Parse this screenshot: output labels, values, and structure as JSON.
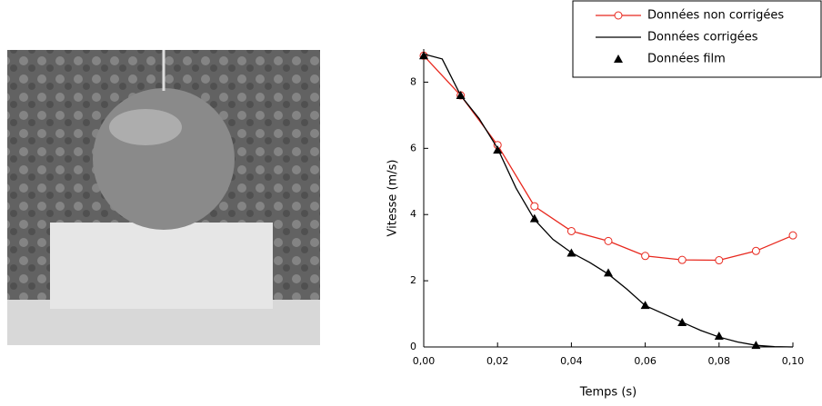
{
  "chart_data": {
    "type": "line",
    "xlabel": "Temps (s)",
    "ylabel": "Vitesse (m/s)",
    "xlim": [
      0,
      0.1
    ],
    "ylim": [
      0,
      9
    ],
    "xticks": [
      {
        "value": 0,
        "label": "0,00"
      },
      {
        "value": 0.02,
        "label": "0,02"
      },
      {
        "value": 0.04,
        "label": "0,04"
      },
      {
        "value": 0.06,
        "label": "0,06"
      },
      {
        "value": 0.08,
        "label": "0,08"
      },
      {
        "value": 0.1,
        "label": "0,10"
      }
    ],
    "yticks": [
      0,
      2,
      4,
      6,
      8
    ],
    "series": [
      {
        "name": "Données non corrigées",
        "color": "#e8281e",
        "marker": "circle",
        "line": true,
        "x": [
          0,
          0.01,
          0.02,
          0.03,
          0.04,
          0.05,
          0.06,
          0.07,
          0.08,
          0.09,
          0.1
        ],
        "values": [
          8.8,
          7.6,
          6.1,
          4.25,
          3.5,
          3.2,
          2.75,
          2.63,
          2.62,
          2.9,
          3.37
        ]
      },
      {
        "name": "Données corrigées",
        "color": "#000000",
        "marker": "none",
        "line": true,
        "x": [
          0,
          0.005,
          0.01,
          0.015,
          0.02,
          0.025,
          0.03,
          0.035,
          0.04,
          0.045,
          0.05,
          0.055,
          0.06,
          0.065,
          0.07,
          0.075,
          0.08,
          0.085,
          0.09,
          0.095,
          0.1
        ],
        "values": [
          8.85,
          8.7,
          7.6,
          6.9,
          6.0,
          4.8,
          3.85,
          3.25,
          2.85,
          2.55,
          2.2,
          1.75,
          1.25,
          1.0,
          0.75,
          0.5,
          0.3,
          0.15,
          0.05,
          0.01,
          0
        ]
      },
      {
        "name": "Données film",
        "color": "#000000",
        "marker": "triangle",
        "line": false,
        "x": [
          0,
          0.01,
          0.02,
          0.03,
          0.04,
          0.05,
          0.06,
          0.07,
          0.08,
          0.09
        ],
        "values": [
          8.8,
          7.6,
          5.95,
          3.88,
          2.84,
          2.24,
          1.26,
          0.74,
          0.33,
          0.05
        ]
      }
    ]
  }
}
